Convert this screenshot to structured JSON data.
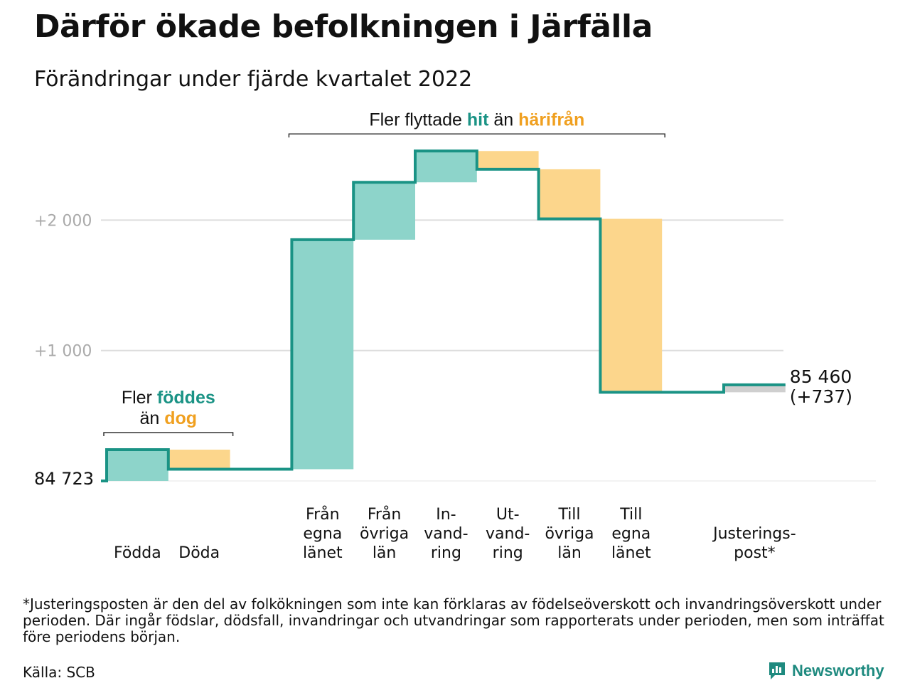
{
  "title": "Därför ökade befolkningen i Järfälla",
  "subtitle": "Förändringar under fjärde kvartalet 2022",
  "footnote": "*Justeringsposten är den del av folkökningen som inte kan förklaras av födelseöverskott och invandringsöverskott under perioden. Där ingår födslar, dödsfall, invandringar och utvandringar som rapporterats under perioden, men som inträffat före periodens början.",
  "source": "Källa: SCB",
  "logo": {
    "text": "Newsworthy",
    "icon": "chart-bubble-icon"
  },
  "colors": {
    "increase": "#8dd4ca",
    "decrease": "#fcd68c",
    "adjustment": "#cfcfcf",
    "line": "#1a9385",
    "accent_teal": "#1a9385",
    "accent_orange": "#f0a020",
    "gridline": "#dddddd",
    "axis_label": "#aaaaaa"
  },
  "chart_data": {
    "type": "waterfall",
    "start_value": 84723,
    "start_label": "84 723",
    "end_value": 85460,
    "end_label": "85 460",
    "end_change_label": "(+737)",
    "y_axis": {
      "min_offset": 0,
      "max_offset": 2500,
      "ticks": [
        {
          "offset": 1000,
          "label": "+1 000"
        },
        {
          "offset": 2000,
          "label": "+2 000"
        }
      ],
      "grid": true
    },
    "steps": [
      {
        "label": [
          "Födda"
        ],
        "change": 240,
        "kind": "increase"
      },
      {
        "label": [
          "Döda"
        ],
        "change": -150,
        "kind": "decrease"
      },
      {
        "label": [],
        "change": 0,
        "kind": "gap"
      },
      {
        "label": [
          "Från",
          "egna",
          "länet"
        ],
        "change": 1760,
        "kind": "increase"
      },
      {
        "label": [
          "Från",
          "övriga",
          "län"
        ],
        "change": 440,
        "kind": "increase"
      },
      {
        "label": [
          "In-",
          "vand-",
          "ring"
        ],
        "change": 240,
        "kind": "increase"
      },
      {
        "label": [
          "Ut-",
          "vand-",
          "ring"
        ],
        "change": -140,
        "kind": "decrease"
      },
      {
        "label": [
          "Till",
          "övriga",
          "län"
        ],
        "change": -380,
        "kind": "decrease"
      },
      {
        "label": [
          "Till",
          "egna",
          "länet"
        ],
        "change": -1330,
        "kind": "decrease"
      },
      {
        "label": [],
        "change": 0,
        "kind": "gap"
      },
      {
        "label": [
          "Justerings-",
          "post*"
        ],
        "change": 57,
        "kind": "adjustment"
      }
    ],
    "annotations": [
      {
        "id": "births",
        "lines": [
          [
            {
              "text": "Fler ",
              "style": "plain"
            },
            {
              "text": "föddes",
              "style": "teal"
            }
          ],
          [
            {
              "text": "än ",
              "style": "plain"
            },
            {
              "text": "dog",
              "style": "orange"
            }
          ]
        ],
        "from_step": 0,
        "to_step": 1
      },
      {
        "id": "migration",
        "lines": [
          [
            {
              "text": "Fler flyttade ",
              "style": "plain"
            },
            {
              "text": "hit",
              "style": "teal"
            },
            {
              "text": " än ",
              "style": "plain"
            },
            {
              "text": "härifrån",
              "style": "orange"
            }
          ]
        ],
        "from_step": 3,
        "to_step": 8
      }
    ]
  }
}
